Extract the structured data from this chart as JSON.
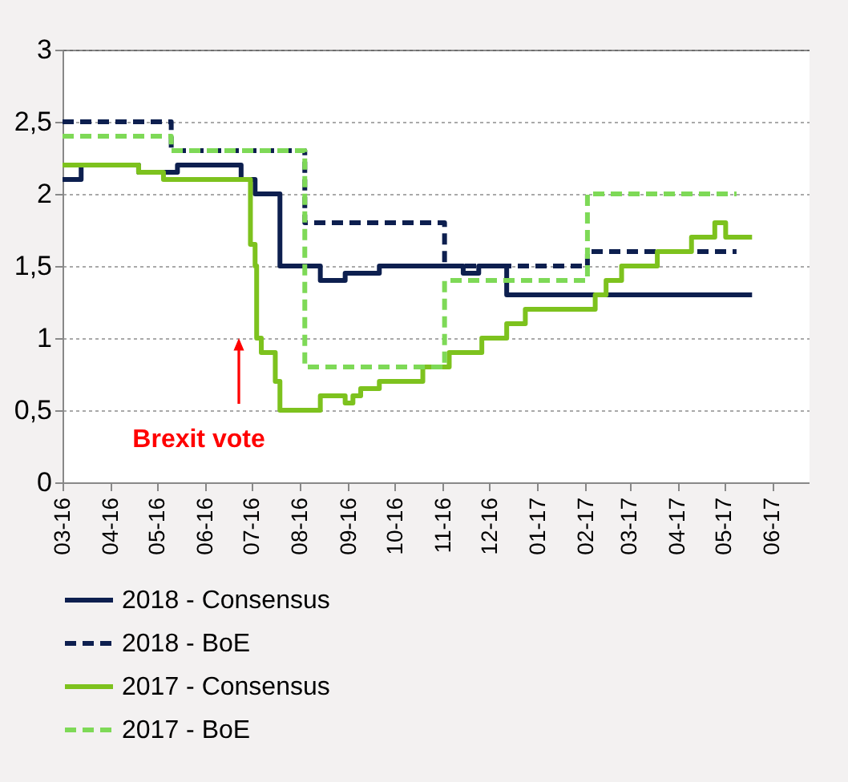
{
  "chart_data": {
    "type": "step",
    "legend": "bottom",
    "grid": "y",
    "xlim": [
      "2016-03-01",
      "2017-06-25"
    ],
    "xticks": [
      {
        "value": "2016-03",
        "label": "03-16"
      },
      {
        "value": "2016-04",
        "label": "04-16"
      },
      {
        "value": "2016-05",
        "label": "05-16"
      },
      {
        "value": "2016-06",
        "label": "06-16"
      },
      {
        "value": "2016-07",
        "label": "07-16"
      },
      {
        "value": "2016-08",
        "label": "08-16"
      },
      {
        "value": "2016-09",
        "label": "09-16"
      },
      {
        "value": "2016-10",
        "label": "10-16"
      },
      {
        "value": "2016-11",
        "label": "11-16"
      },
      {
        "value": "2016-12",
        "label": "12-16"
      },
      {
        "value": "2017-01",
        "label": "01-17"
      },
      {
        "value": "2017-02",
        "label": "02-17"
      },
      {
        "value": "2017-03",
        "label": "03-17"
      },
      {
        "value": "2017-04",
        "label": "04-17"
      },
      {
        "value": "2017-05",
        "label": "05-17"
      },
      {
        "value": "2017-06",
        "label": "06-17"
      }
    ],
    "ylim": [
      0,
      3
    ],
    "yticks": [
      0,
      {
        "value": 0.5,
        "label": "0,5"
      },
      1,
      {
        "value": 1.5,
        "label": "1,5"
      },
      2,
      {
        "value": 2.5,
        "label": "2,5"
      },
      3
    ],
    "annotations": [
      "Brexit vote"
    ],
    "series": [
      {
        "name": "2018 - Consensus",
        "color": "#0d1f4f",
        "line_style": "solid",
        "x": [
          "2016-03-01",
          "2016-03-13",
          "2016-04-19",
          "2016-05-14",
          "2016-06-24",
          "2016-07-03",
          "2016-07-19",
          "2016-08-14",
          "2016-08-30",
          "2016-09-21",
          "2016-11-14",
          "2016-11-24",
          "2016-12-12",
          "2017-05-19"
        ],
        "values": [
          2.1,
          2.2,
          2.15,
          2.2,
          2.1,
          2.0,
          1.5,
          1.4,
          1.45,
          1.5,
          1.45,
          1.5,
          1.3,
          1.3
        ]
      },
      {
        "name": "2018 - BoE",
        "color": "#0d1f4f",
        "line_style": "dashed",
        "x": [
          "2016-03-01",
          "2016-05-10",
          "2016-08-04",
          "2016-11-02",
          "2017-02-02",
          "2017-05-09"
        ],
        "values": [
          2.5,
          2.3,
          1.8,
          1.5,
          1.6,
          1.6
        ]
      },
      {
        "name": "2017 - Consensus",
        "color": "#7dc21e",
        "line_style": "solid",
        "x": [
          "2016-03-01",
          "2016-04-19",
          "2016-05-05",
          "2016-06-30",
          "2016-07-03",
          "2016-07-04",
          "2016-07-07",
          "2016-07-16",
          "2016-07-19",
          "2016-08-14",
          "2016-08-30",
          "2016-09-04",
          "2016-09-09",
          "2016-09-21",
          "2016-10-19",
          "2016-11-05",
          "2016-11-26",
          "2016-12-12",
          "2016-12-24",
          "2017-02-07",
          "2017-02-14",
          "2017-02-24",
          "2017-03-19",
          "2017-04-10",
          "2017-04-25",
          "2017-05-02",
          "2017-05-19"
        ],
        "values": [
          2.2,
          2.15,
          2.1,
          1.65,
          1.5,
          1.0,
          0.9,
          0.7,
          0.5,
          0.6,
          0.55,
          0.6,
          0.65,
          0.7,
          0.8,
          0.9,
          1.0,
          1.1,
          1.2,
          1.3,
          1.4,
          1.5,
          1.6,
          1.7,
          1.8,
          1.7,
          1.7
        ]
      },
      {
        "name": "2017 - BoE",
        "color": "#7ed957",
        "line_style": "dashed",
        "x": [
          "2016-03-01",
          "2016-05-10",
          "2016-08-04",
          "2016-11-02",
          "2017-02-02",
          "2017-05-09"
        ],
        "values": [
          2.4,
          2.3,
          0.8,
          1.4,
          2.0,
          2.0
        ]
      }
    ]
  }
}
